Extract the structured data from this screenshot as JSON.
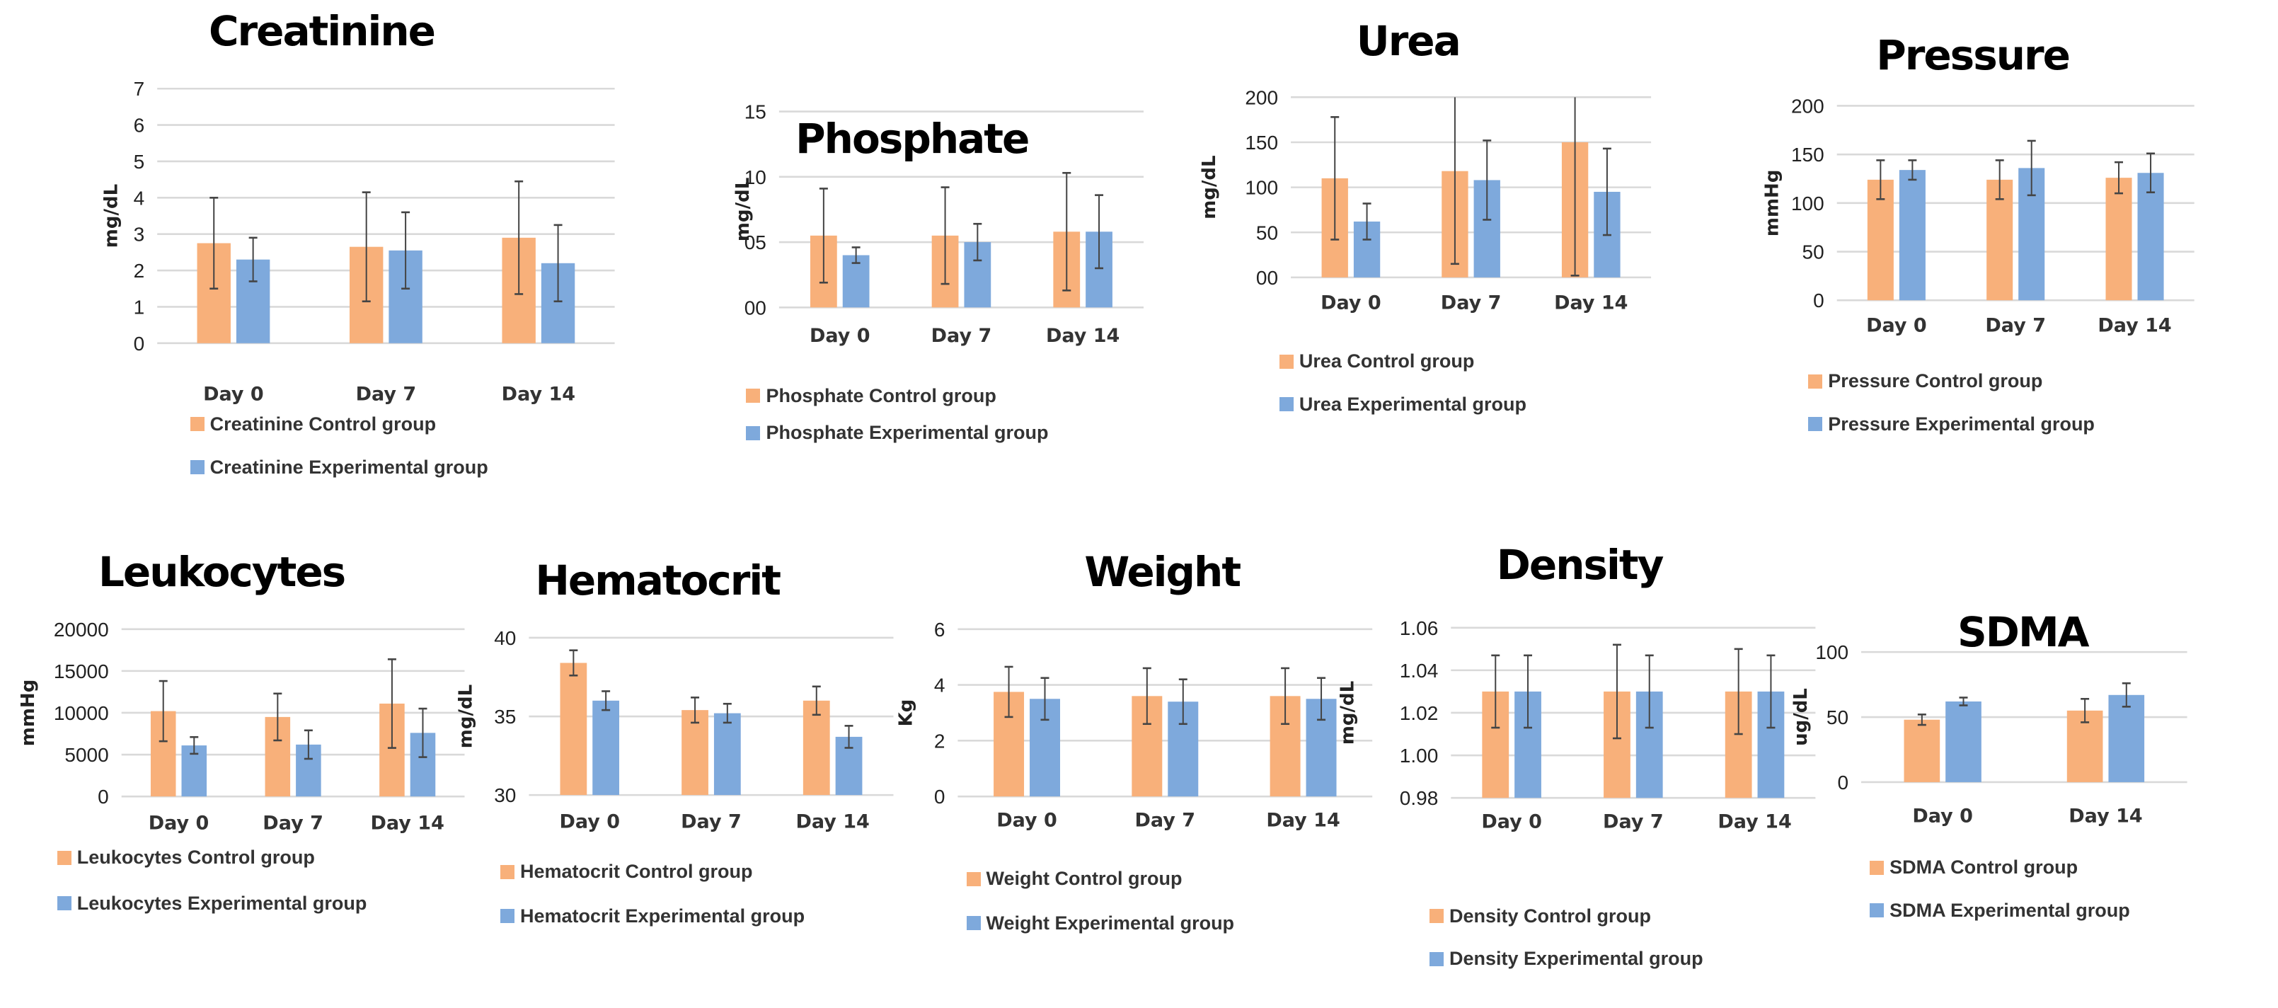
{
  "colors": {
    "control": "#F8B07A",
    "experimental": "#7EA9DC",
    "grid": "#D9D9D9",
    "error": "#444444"
  },
  "chart_data": [
    {
      "type": "bar",
      "title": "Creatinine",
      "ylabel": "mg/dL",
      "ylim": [
        0,
        7
      ],
      "yticks": [
        0,
        1,
        2,
        3,
        4,
        5,
        6,
        7
      ],
      "ytick_labels": [
        "0",
        "1",
        "2",
        "3",
        "4",
        "5",
        "6",
        "7"
      ],
      "categories": [
        "Day 0",
        "Day 7",
        "Day 14"
      ],
      "grid": true,
      "legend": "bottom",
      "series": [
        {
          "name": "Creatinine Control group",
          "values": [
            2.75,
            2.65,
            2.9
          ],
          "errors": [
            1.25,
            1.5,
            1.55
          ]
        },
        {
          "name": "Creatinine Experimental group",
          "values": [
            2.3,
            2.55,
            2.2
          ],
          "errors": [
            0.6,
            1.05,
            1.05
          ]
        }
      ]
    },
    {
      "type": "bar",
      "title": "Phosphate",
      "ylabel": "mg/dL",
      "ylim": [
        0,
        15
      ],
      "yticks": [
        0,
        5,
        10,
        15
      ],
      "ytick_labels": [
        "00",
        "05",
        "10",
        "15"
      ],
      "categories": [
        "Day 0",
        "Day 7",
        "Day 14"
      ],
      "grid": true,
      "legend": "bottom",
      "series": [
        {
          "name": "Phosphate Control group",
          "values": [
            5.5,
            5.5,
            5.8
          ],
          "errors": [
            3.6,
            3.7,
            4.5
          ]
        },
        {
          "name": "Phosphate Experimental group",
          "values": [
            4.0,
            5.0,
            5.8
          ],
          "errors": [
            0.6,
            1.4,
            2.8
          ]
        }
      ]
    },
    {
      "type": "bar",
      "title": "Urea",
      "ylabel": "mg/dL",
      "ylim": [
        0,
        200
      ],
      "yticks": [
        0,
        50,
        100,
        150,
        200
      ],
      "ytick_labels": [
        "00",
        "50",
        "100",
        "150",
        "200"
      ],
      "categories": [
        "Day 0",
        "Day 7",
        "Day 14"
      ],
      "grid": true,
      "legend": "bottom",
      "series": [
        {
          "name": "Urea Control group",
          "values": [
            110,
            118,
            150
          ],
          "errors": [
            68,
            103,
            148
          ]
        },
        {
          "name": "Urea Experimental group",
          "values": [
            62,
            108,
            95
          ],
          "errors": [
            20,
            44,
            48
          ]
        }
      ]
    },
    {
      "type": "bar",
      "title": "Pressure",
      "ylabel": "mmHg",
      "ylim": [
        0,
        200
      ],
      "yticks": [
        0,
        50,
        100,
        150,
        200
      ],
      "ytick_labels": [
        "0",
        "50",
        "100",
        "150",
        "200"
      ],
      "categories": [
        "Day 0",
        "Day 7",
        "Day 14"
      ],
      "grid": true,
      "legend": "bottom",
      "series": [
        {
          "name": "Pressure Control group",
          "values": [
            124,
            124,
            126
          ],
          "errors": [
            20,
            20,
            16
          ]
        },
        {
          "name": "Pressure Experimental group",
          "values": [
            134,
            136,
            131
          ],
          "errors": [
            10,
            28,
            20
          ]
        }
      ]
    },
    {
      "type": "bar",
      "title": "Leukocytes",
      "ylabel": "mmHg",
      "ylim": [
        0,
        20000
      ],
      "yticks": [
        0,
        5000,
        10000,
        15000,
        20000
      ],
      "ytick_labels": [
        "0",
        "5000",
        "10000",
        "15000",
        "20000"
      ],
      "categories": [
        "Day 0",
        "Day 7",
        "Day 14"
      ],
      "grid": true,
      "legend": "bottom",
      "series": [
        {
          "name": "Leukocytes Control group",
          "values": [
            10200,
            9500,
            11100
          ],
          "errors": [
            3600,
            2800,
            5300
          ]
        },
        {
          "name": "Leukocytes Experimental group",
          "values": [
            6100,
            6200,
            7600
          ],
          "errors": [
            1000,
            1700,
            2900
          ]
        }
      ]
    },
    {
      "type": "bar",
      "title": "Hematocrit",
      "ylabel": "mg/dL",
      "ylim": [
        30,
        40
      ],
      "yticks": [
        30,
        35,
        40
      ],
      "ytick_labels": [
        "30",
        "35",
        "40"
      ],
      "categories": [
        "Day 0",
        "Day 7",
        "Day 14"
      ],
      "grid": true,
      "legend": "bottom",
      "series": [
        {
          "name": "Hematocrit Control group",
          "values": [
            38.4,
            35.4,
            36.0
          ],
          "errors": [
            0.8,
            0.8,
            0.9
          ]
        },
        {
          "name": "Hematocrit Experimental group",
          "values": [
            36.0,
            35.2,
            33.7
          ],
          "errors": [
            0.6,
            0.6,
            0.7
          ]
        }
      ]
    },
    {
      "type": "bar",
      "title": "Weight",
      "ylabel": "Kg",
      "ylim": [
        0,
        6
      ],
      "yticks": [
        0,
        2,
        4,
        6
      ],
      "ytick_labels": [
        "0",
        "2",
        "4",
        "6"
      ],
      "categories": [
        "Day 0",
        "Day 7",
        "Day 14"
      ],
      "grid": true,
      "legend": "bottom",
      "series": [
        {
          "name": "Weight Control group",
          "values": [
            3.75,
            3.6,
            3.6
          ],
          "errors": [
            0.9,
            1.0,
            1.0
          ]
        },
        {
          "name": "Weight Experimental group",
          "values": [
            3.5,
            3.4,
            3.5
          ],
          "errors": [
            0.75,
            0.8,
            0.75
          ]
        }
      ]
    },
    {
      "type": "bar",
      "title": "Density",
      "ylabel": "mg/dL",
      "ylim": [
        0.98,
        1.06
      ],
      "yticks": [
        0.98,
        1.0,
        1.02,
        1.04,
        1.06
      ],
      "ytick_labels": [
        "0.98",
        "1.00",
        "1.02",
        "1.04",
        "1.06"
      ],
      "categories": [
        "Day 0",
        "Day 7",
        "Day 14"
      ],
      "grid": true,
      "legend": "bottom",
      "series": [
        {
          "name": "Density Control group",
          "values": [
            1.03,
            1.03,
            1.03
          ],
          "errors": [
            0.017,
            0.022,
            0.02
          ]
        },
        {
          "name": "Density Experimental group",
          "values": [
            1.03,
            1.03,
            1.03
          ],
          "errors": [
            0.017,
            0.017,
            0.017
          ]
        }
      ]
    },
    {
      "type": "bar",
      "title": "SDMA",
      "ylabel": "ug/dL",
      "ylim": [
        0,
        100
      ],
      "yticks": [
        0,
        50,
        100
      ],
      "ytick_labels": [
        "0",
        "50",
        "100"
      ],
      "categories": [
        "Day 0",
        "Day 14"
      ],
      "grid": true,
      "legend": "bottom",
      "series": [
        {
          "name": "SDMA Control group",
          "values": [
            48,
            55
          ],
          "errors": [
            4,
            9
          ]
        },
        {
          "name": "SDMA Experimental group",
          "values": [
            62,
            67
          ],
          "errors": [
            3,
            9
          ]
        }
      ]
    }
  ]
}
